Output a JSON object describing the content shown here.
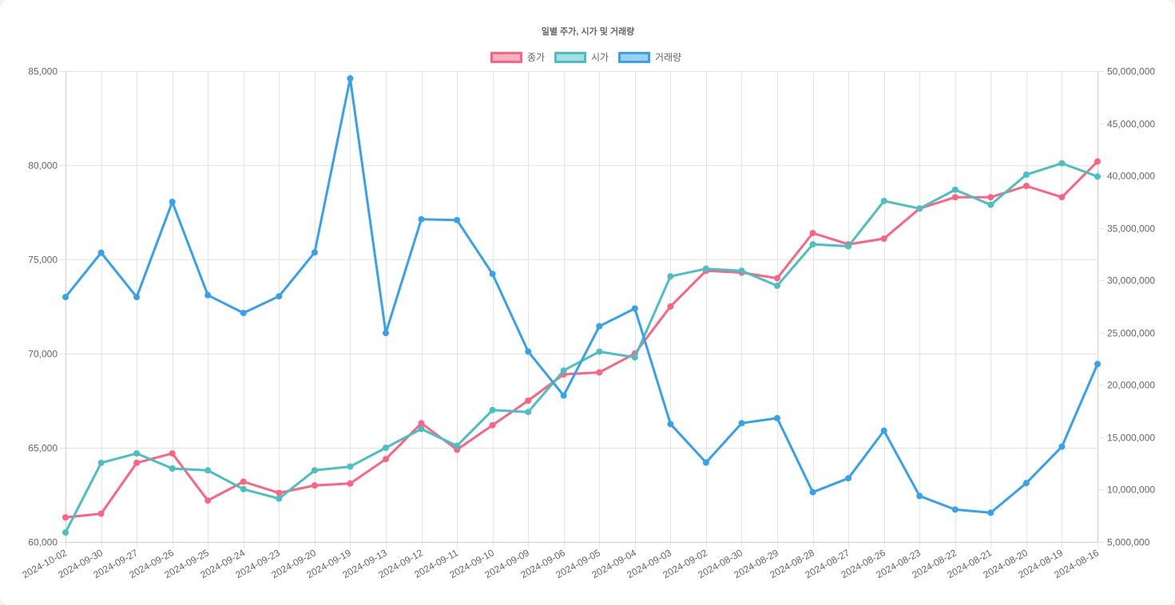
{
  "chart_data": {
    "type": "line",
    "title": "일별 주가, 시가 및 거래량",
    "legend": {
      "position": "top",
      "items": [
        {
          "label": "종가",
          "border": "#ff6384",
          "fill": "#ffb1c1"
        },
        {
          "label": "시가",
          "border": "#4bc0c0",
          "fill": "#a5dfdf"
        },
        {
          "label": "거래량",
          "border": "#36a2eb",
          "fill": "#9ad0f5"
        }
      ]
    },
    "categories": [
      "2024-10-02",
      "2024-09-30",
      "2024-09-27",
      "2024-09-26",
      "2024-09-25",
      "2024-09-24",
      "2024-09-23",
      "2024-09-20",
      "2024-09-19",
      "2024-09-13",
      "2024-09-12",
      "2024-09-11",
      "2024-09-10",
      "2024-09-09",
      "2024-09-06",
      "2024-09-05",
      "2024-09-04",
      "2024-09-03",
      "2024-09-02",
      "2024-08-30",
      "2024-08-29",
      "2024-08-28",
      "2024-08-27",
      "2024-08-26",
      "2024-08-23",
      "2024-08-22",
      "2024-08-21",
      "2024-08-20",
      "2024-08-19",
      "2024-08-16"
    ],
    "series": [
      {
        "name": "종가",
        "axis": "left",
        "color": "#ff6384",
        "values": [
          61300,
          61500,
          64200,
          64700,
          62200,
          63200,
          62600,
          63000,
          63100,
          64400,
          66300,
          64900,
          66200,
          67500,
          68900,
          69000,
          70000,
          72500,
          74400,
          74300,
          74000,
          76400,
          75800,
          76100,
          77700,
          78300,
          78300,
          78900,
          78300,
          80200
        ]
      },
      {
        "name": "시가",
        "axis": "left",
        "color": "#4bc0c0",
        "values": [
          60500,
          64200,
          64700,
          63900,
          63800,
          62800,
          62300,
          63800,
          64000,
          65000,
          66000,
          65100,
          67000,
          66900,
          69100,
          70100,
          69800,
          74100,
          74500,
          74400,
          73600,
          75800,
          75700,
          78100,
          77700,
          78700,
          77900,
          79500,
          80100,
          79400
        ]
      },
      {
        "name": "거래량",
        "axis": "right",
        "color": "#36a2eb",
        "values": [
          28400000,
          32640000,
          28400000,
          37490000,
          28580000,
          26880000,
          28480000,
          32660000,
          49290000,
          24970000,
          35840000,
          35760000,
          30610000,
          23200000,
          18990000,
          25610000,
          27310000,
          16270000,
          12590000,
          16350000,
          16830000,
          9750000,
          11090000,
          15630000,
          9390000,
          8100000,
          7790000,
          10630000,
          14110000,
          22000000
        ]
      }
    ],
    "y_left": {
      "min": 60000,
      "max": 85000,
      "step": 5000,
      "tick_labels": [
        "60,000",
        "65,000",
        "70,000",
        "75,000",
        "80,000",
        "85,000"
      ]
    },
    "y_right": {
      "min": 5000000,
      "max": 50000000,
      "step": 5000000,
      "tick_labels": [
        "5,000,000",
        "10,000,000",
        "15,000,000",
        "20,000,000",
        "25,000,000",
        "30,000,000",
        "35,000,000",
        "40,000,000",
        "45,000,000",
        "50,000,000"
      ]
    },
    "xlabel": "",
    "ylabel": "",
    "grid": true
  }
}
